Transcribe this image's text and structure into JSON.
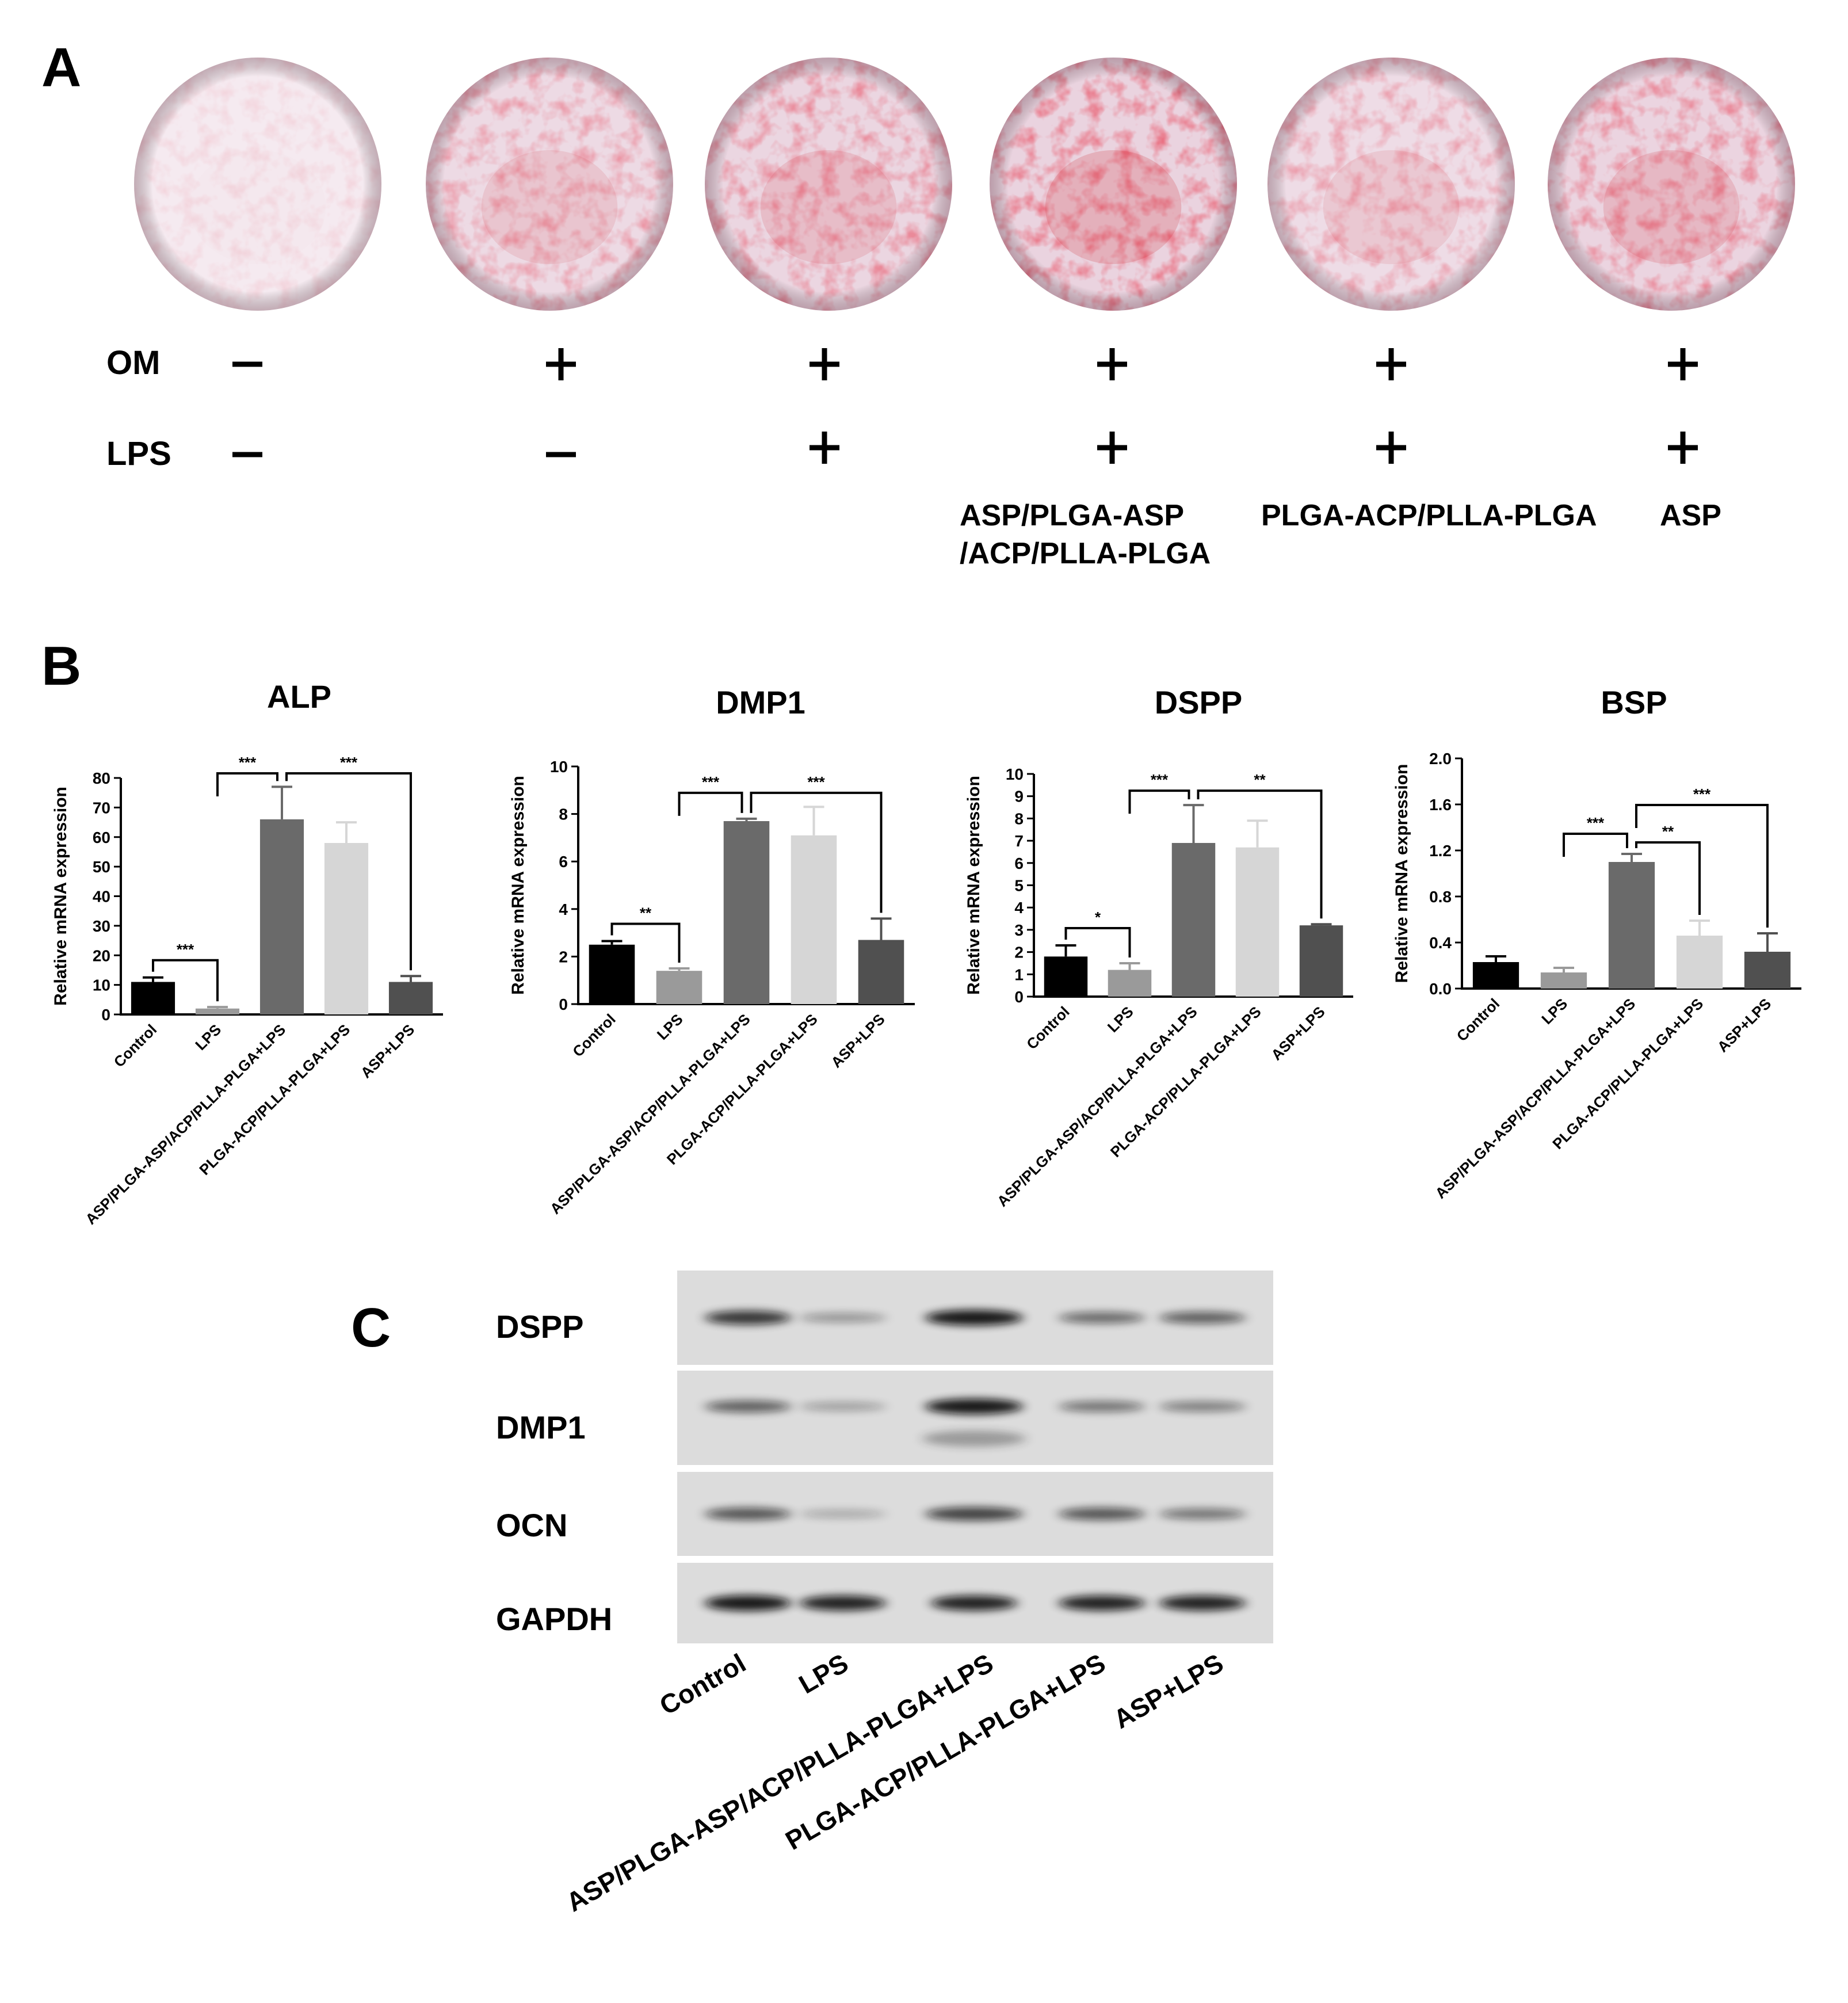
{
  "panel_a": {
    "letter": "A",
    "om_label": "OM",
    "lps_label": "LPS",
    "om_signs": [
      "−",
      "+",
      "+",
      "+",
      "+",
      "+"
    ],
    "lps_signs": [
      "−",
      "−",
      "+",
      "+",
      "+",
      "+"
    ],
    "groups": [
      {
        "lines": []
      },
      {
        "lines": []
      },
      {
        "lines": []
      },
      {
        "lines": [
          "ASP/PLGA-ASP",
          "/ACP/PLLA-PLGA"
        ]
      },
      {
        "lines": [
          "PLGA-ACP/PLLA-PLGA"
        ]
      },
      {
        "lines": [
          "ASP"
        ]
      }
    ],
    "wells": [
      {
        "stain": 0.05
      },
      {
        "stain": 0.55
      },
      {
        "stain": 0.7
      },
      {
        "stain": 0.95
      },
      {
        "stain": 0.5
      },
      {
        "stain": 0.75
      }
    ],
    "colors": {
      "stain": "#d0303a",
      "base": "#e6cbd9"
    }
  },
  "panel_b": {
    "letter": "B",
    "ylabel": "Relative mRNA expression",
    "colors": [
      "#000000",
      "#9a9a9a",
      "#6a6a6a",
      "#d6d6d6",
      "#505050"
    ]
  },
  "panel_c": {
    "letter": "C",
    "rows": [
      "DSPP",
      "DMP1",
      "OCN",
      "GAPDH"
    ],
    "lanes": [
      "Control",
      "LPS",
      "ASP/PLGA-ASP/ACP/PLLA-PLGA+LPS",
      "PLGA-ACP/PLLA-PLGA+LPS",
      "ASP+LPS"
    ],
    "intensity": [
      [
        0.8,
        0.35,
        0.95,
        0.55,
        0.6
      ],
      [
        0.6,
        0.3,
        0.95,
        0.5,
        0.45
      ],
      [
        0.65,
        0.25,
        0.75,
        0.65,
        0.5
      ],
      [
        0.95,
        0.9,
        0.9,
        0.9,
        0.9
      ]
    ]
  },
  "chart_data": [
    {
      "type": "bar",
      "title": "ALP",
      "ylabel": "Relative mRNA expression",
      "categories": [
        "Control",
        "LPS",
        "ASP/PLGA-ASP/ACP/PLLA-PLGA+LPS",
        "PLGA-ACP/PLLA-PLGA+LPS",
        "ASP+LPS"
      ],
      "values": [
        11,
        2,
        66,
        58,
        11
      ],
      "errors": [
        1.5,
        0.5,
        11,
        7,
        2
      ],
      "ylim": [
        0,
        80
      ],
      "yticks": [
        0,
        10,
        20,
        30,
        40,
        50,
        60,
        70,
        80
      ],
      "annotations": [
        {
          "from": 0,
          "to": 1,
          "label": "***"
        },
        {
          "from": 1,
          "to": 2,
          "label": "***"
        },
        {
          "from": 2,
          "to": 4,
          "label": "***"
        }
      ]
    },
    {
      "type": "bar",
      "title": "DMP1",
      "ylabel": "Relative mRNA expression",
      "categories": [
        "Control",
        "LPS",
        "ASP/PLGA-ASP/ACP/PLLA-PLGA+LPS",
        "PLGA-ACP/PLLA-PLGA+LPS",
        "ASP+LPS"
      ],
      "values": [
        2.5,
        1.4,
        7.7,
        7.1,
        2.7
      ],
      "errors": [
        0.15,
        0.1,
        0.1,
        1.2,
        0.9
      ],
      "ylim": [
        0,
        10
      ],
      "yticks": [
        0,
        2,
        4,
        6,
        8,
        10
      ],
      "annotations": [
        {
          "from": 0,
          "to": 1,
          "label": "**"
        },
        {
          "from": 1,
          "to": 2,
          "label": "***"
        },
        {
          "from": 2,
          "to": 4,
          "label": "***"
        }
      ]
    },
    {
      "type": "bar",
      "title": "DSPP",
      "ylabel": "Relative mRNA expression",
      "categories": [
        "Control",
        "LPS",
        "ASP/PLGA-ASP/ACP/PLLA-PLGA+LPS",
        "PLGA-ACP/PLLA-PLGA+LPS",
        "ASP+LPS"
      ],
      "values": [
        1.8,
        1.2,
        6.9,
        6.7,
        3.2
      ],
      "errors": [
        0.5,
        0.3,
        1.7,
        1.2,
        0.05
      ],
      "ylim": [
        0,
        10
      ],
      "yticks": [
        0,
        1,
        2,
        3,
        4,
        5,
        6,
        7,
        8,
        9,
        10
      ],
      "annotations": [
        {
          "from": 0,
          "to": 1,
          "label": "*"
        },
        {
          "from": 1,
          "to": 2,
          "label": "***"
        },
        {
          "from": 2,
          "to": 4,
          "label": "**"
        }
      ]
    },
    {
      "type": "bar",
      "title": "BSP",
      "ylabel": "Relative mRNA expression",
      "categories": [
        "Control",
        "LPS",
        "ASP/PLGA-ASP/ACP/PLLA-PLGA+LPS",
        "PLGA-ACP/PLLA-PLGA+LPS",
        "ASP+LPS"
      ],
      "values": [
        0.23,
        0.14,
        1.1,
        0.46,
        0.32
      ],
      "errors": [
        0.05,
        0.04,
        0.07,
        0.13,
        0.16
      ],
      "ylim": [
        0,
        2
      ],
      "yticks": [
        "0.0",
        "0.4",
        "0.8",
        "1.2",
        "1.6",
        "2.0"
      ],
      "annotations": [
        {
          "from": 1,
          "to": 2,
          "label": "***"
        },
        {
          "from": 2,
          "to": 3,
          "label": "**"
        },
        {
          "from": 2,
          "to": 4,
          "label": "***"
        }
      ]
    }
  ]
}
